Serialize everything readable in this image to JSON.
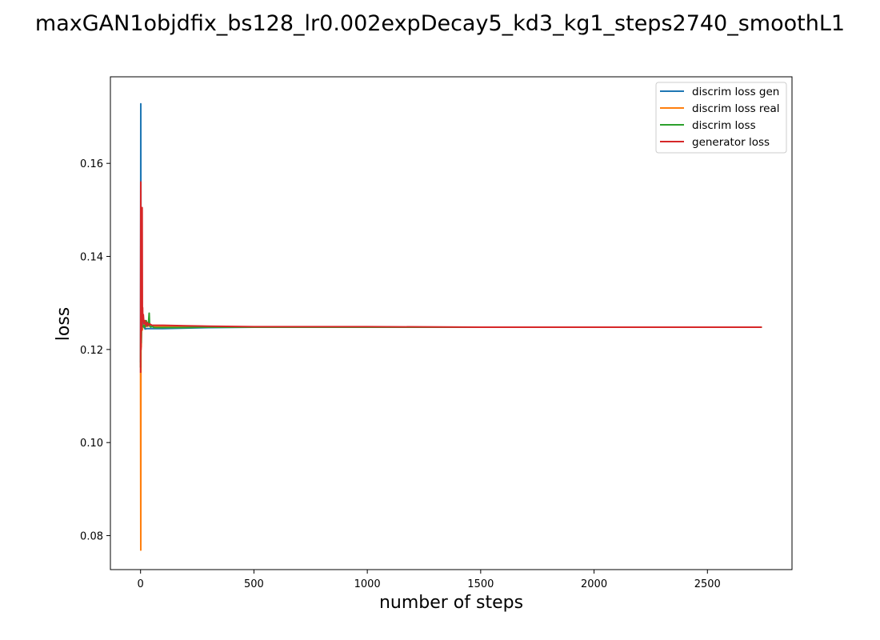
{
  "chart_data": {
    "type": "line",
    "title": "maxGAN1objdfix_bs128_lr0.002expDecay5_kd3_kg1_steps2740_smoothL1",
    "xlabel": "number of steps",
    "ylabel": "loss",
    "xlim": [
      -133,
      2873
    ],
    "ylim": [
      0.0727,
      0.1786
    ],
    "xticks": [
      0,
      500,
      1000,
      1500,
      2000,
      2500
    ],
    "yticks": [
      0.08,
      0.1,
      0.12,
      0.14,
      0.16
    ],
    "xtick_labels": [
      "0",
      "500",
      "1000",
      "1500",
      "2000",
      "2500"
    ],
    "ytick_labels": [
      "0.08",
      "0.10",
      "0.12",
      "0.14",
      "0.16"
    ],
    "grid": false,
    "legend_position": "top-right",
    "series": [
      {
        "name": "discrim loss gen",
        "color": "#1f77b4",
        "x": [
          0,
          1,
          2,
          3,
          4,
          6,
          8,
          10,
          15,
          20,
          30,
          40,
          60,
          100,
          200,
          300,
          500,
          1000,
          1500,
          2000,
          2500,
          2740
        ],
        "y": [
          0.1172,
          0.1728,
          0.13,
          0.1224,
          0.1262,
          0.1251,
          0.1258,
          0.1247,
          0.1249,
          0.1244,
          0.1245,
          0.1245,
          0.1245,
          0.1245,
          0.1246,
          0.1247,
          0.1248,
          0.1248,
          0.1248,
          0.1248,
          0.1248,
          0.1248
        ]
      },
      {
        "name": "discrim loss real",
        "color": "#ff7f0e",
        "x": [
          0,
          1,
          2,
          3,
          4,
          6,
          8,
          10,
          15,
          20,
          30,
          40,
          60,
          100,
          200,
          300,
          500,
          1000,
          1500,
          2000,
          2500,
          2740
        ],
        "y": [
          0.115,
          0.0769,
          0.128,
          0.1205,
          0.124,
          0.1256,
          0.1242,
          0.1252,
          0.125,
          0.1253,
          0.1251,
          0.125,
          0.125,
          0.125,
          0.1249,
          0.1249,
          0.1248,
          0.1248,
          0.1248,
          0.1248,
          0.1248,
          0.1248
        ]
      },
      {
        "name": "discrim loss",
        "color": "#2ca02c",
        "x": [
          0,
          1,
          2,
          3,
          4,
          6,
          8,
          10,
          15,
          20,
          25,
          30,
          35,
          38,
          40,
          45,
          50,
          60,
          100,
          200,
          300,
          500,
          1000,
          1500,
          2000,
          2500,
          2740
        ],
        "y": [
          0.1161,
          0.1248,
          0.129,
          0.1214,
          0.1251,
          0.1254,
          0.125,
          0.1249,
          0.1252,
          0.1247,
          0.1262,
          0.125,
          0.1257,
          0.1278,
          0.1252,
          0.1248,
          0.125,
          0.1247,
          0.1247,
          0.1247,
          0.1248,
          0.1248,
          0.1248,
          0.1248,
          0.1248,
          0.1248,
          0.1248
        ]
      },
      {
        "name": "generator loss",
        "color": "#d62728",
        "x": [
          0,
          1,
          2,
          3,
          4,
          5,
          6,
          7,
          8,
          9,
          10,
          12,
          15,
          20,
          25,
          30,
          35,
          40,
          50,
          60,
          100,
          200,
          300,
          500,
          1000,
          1500,
          2000,
          2500,
          2740
        ],
        "y": [
          0.115,
          0.156,
          0.12,
          0.133,
          0.124,
          0.15,
          0.125,
          0.1505,
          0.127,
          0.129,
          0.126,
          0.1275,
          0.1255,
          0.1262,
          0.125,
          0.1258,
          0.1252,
          0.1255,
          0.1252,
          0.1252,
          0.1252,
          0.1251,
          0.125,
          0.1249,
          0.1249,
          0.1248,
          0.1248,
          0.1248,
          0.1248
        ]
      }
    ]
  }
}
